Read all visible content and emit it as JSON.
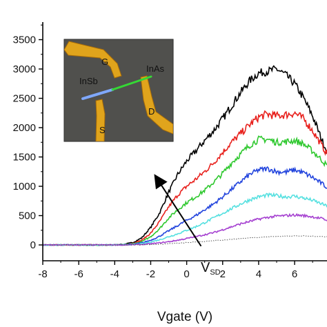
{
  "chart_data": {
    "type": "line",
    "title": "",
    "xlabel": "Vgate (V)",
    "ylabel": "",
    "xlim": [
      -8,
      7.8
    ],
    "ylim": [
      -270,
      3800
    ],
    "x_ticks": [
      -8,
      -6,
      -4,
      -2,
      0,
      2,
      4,
      6
    ],
    "x_tick_labels": [
      "-8",
      "-6",
      "-4",
      "-2",
      "0",
      "2",
      "4",
      "6"
    ],
    "y_ticks": [
      0,
      500,
      1000,
      1500,
      2000,
      2500,
      3000,
      3500
    ],
    "y_tick_labels": [
      "0",
      "500",
      "1000",
      "1500",
      "2000",
      "2500",
      "3000",
      "3500"
    ],
    "grid": false,
    "series": [
      {
        "color": "#000000",
        "dotted": false,
        "x": [
          -8,
          -4,
          -3.5,
          -3,
          -2.5,
          -2,
          -1.5,
          -1,
          -0.5,
          0,
          0.5,
          1,
          1.5,
          2,
          2.5,
          3,
          3.5,
          4,
          4.5,
          5,
          5.5,
          6,
          6.5,
          7,
          7.5,
          7.8
        ],
        "y": [
          0,
          0,
          10,
          40,
          120,
          300,
          550,
          900,
          1200,
          1430,
          1600,
          1780,
          1950,
          2150,
          2380,
          2600,
          2800,
          2930,
          2960,
          3000,
          2900,
          2750,
          2500,
          2200,
          1800,
          1600
        ]
      },
      {
        "color": "#e8201c",
        "dotted": false,
        "x": [
          -8,
          -4,
          -3.5,
          -3,
          -2.5,
          -2,
          -1.5,
          -1,
          -0.5,
          0,
          0.5,
          1,
          1.5,
          2,
          2.5,
          3,
          3.5,
          4,
          4.5,
          5,
          5.5,
          6,
          6.5,
          7,
          7.5,
          7.8
        ],
        "y": [
          0,
          0,
          5,
          25,
          80,
          200,
          400,
          650,
          850,
          1000,
          1120,
          1250,
          1400,
          1580,
          1750,
          1900,
          2050,
          2180,
          2230,
          2200,
          2220,
          2250,
          2150,
          1950,
          1700,
          1550
        ]
      },
      {
        "color": "#2ec82e",
        "dotted": false,
        "x": [
          -8,
          -4,
          -3.5,
          -3,
          -2.5,
          -2,
          -1.5,
          -1,
          -0.5,
          0,
          0.5,
          1,
          1.5,
          2,
          2.5,
          3,
          3.5,
          4,
          4.5,
          5,
          5.5,
          6,
          6.5,
          7,
          7.5,
          7.8
        ],
        "y": [
          0,
          0,
          4,
          15,
          55,
          140,
          280,
          460,
          600,
          720,
          820,
          930,
          1070,
          1220,
          1400,
          1550,
          1700,
          1800,
          1800,
          1750,
          1760,
          1780,
          1720,
          1600,
          1450,
          1350
        ]
      },
      {
        "color": "#2244dd",
        "dotted": false,
        "x": [
          -8,
          -4,
          -3.5,
          -3,
          -2.5,
          -2,
          -1.5,
          -1,
          -0.5,
          0,
          0.5,
          1,
          1.5,
          2,
          2.5,
          3,
          3.5,
          4,
          4.5,
          5,
          5.5,
          6,
          6.5,
          7,
          7.5,
          7.8
        ],
        "y": [
          0,
          0,
          3,
          10,
          35,
          80,
          150,
          240,
          330,
          420,
          500,
          600,
          700,
          820,
          950,
          1080,
          1200,
          1280,
          1300,
          1250,
          1240,
          1280,
          1230,
          1150,
          1050,
          980
        ]
      },
      {
        "color": "#55e0e0",
        "dotted": false,
        "x": [
          -8,
          -4,
          -3.5,
          -3,
          -2.5,
          -2,
          -1.5,
          -1,
          -0.5,
          0,
          0.5,
          1,
          1.5,
          2,
          2.5,
          3,
          3.5,
          4,
          4.5,
          5,
          5.5,
          6,
          6.5,
          7,
          7.5,
          7.8
        ],
        "y": [
          0,
          0,
          2,
          6,
          20,
          50,
          90,
          140,
          190,
          250,
          310,
          380,
          460,
          540,
          620,
          700,
          770,
          820,
          850,
          840,
          820,
          830,
          800,
          760,
          700,
          660
        ]
      },
      {
        "color": "#a540d0",
        "dotted": false,
        "x": [
          -8,
          -4,
          -3.5,
          -3,
          -2.5,
          -2,
          -1.5,
          -1,
          -0.5,
          0,
          0.5,
          1,
          1.5,
          2,
          2.5,
          3,
          3.5,
          4,
          4.5,
          5,
          5.5,
          6,
          6.5,
          7,
          7.5,
          7.8
        ],
        "y": [
          0,
          0,
          1,
          3,
          8,
          20,
          35,
          55,
          80,
          110,
          140,
          175,
          210,
          260,
          310,
          360,
          400,
          440,
          470,
          490,
          500,
          510,
          500,
          480,
          450,
          420
        ]
      },
      {
        "color": "#555555",
        "dotted": true,
        "x": [
          -8,
          -4,
          -3,
          -2,
          -1,
          0,
          1,
          2,
          3,
          4,
          5,
          6,
          7,
          7.8
        ],
        "y": [
          0,
          0,
          2,
          8,
          20,
          40,
          60,
          85,
          110,
          130,
          145,
          155,
          150,
          140
        ]
      }
    ],
    "arrow": {
      "from": [
        0.8,
        -20
      ],
      "to": [
        -1.6,
        1110
      ],
      "label": "V",
      "label_sub": "SD"
    },
    "inset": {
      "labels": [
        {
          "text": "G",
          "color": "#1a1a1a"
        },
        {
          "text": "InSb",
          "color": "#4fb8e8"
        },
        {
          "text": "InAs",
          "color": "#3ee03e"
        },
        {
          "text": "S",
          "color": "#1a1a1a"
        },
        {
          "text": "D",
          "color": "#1a1a1a"
        }
      ]
    }
  }
}
